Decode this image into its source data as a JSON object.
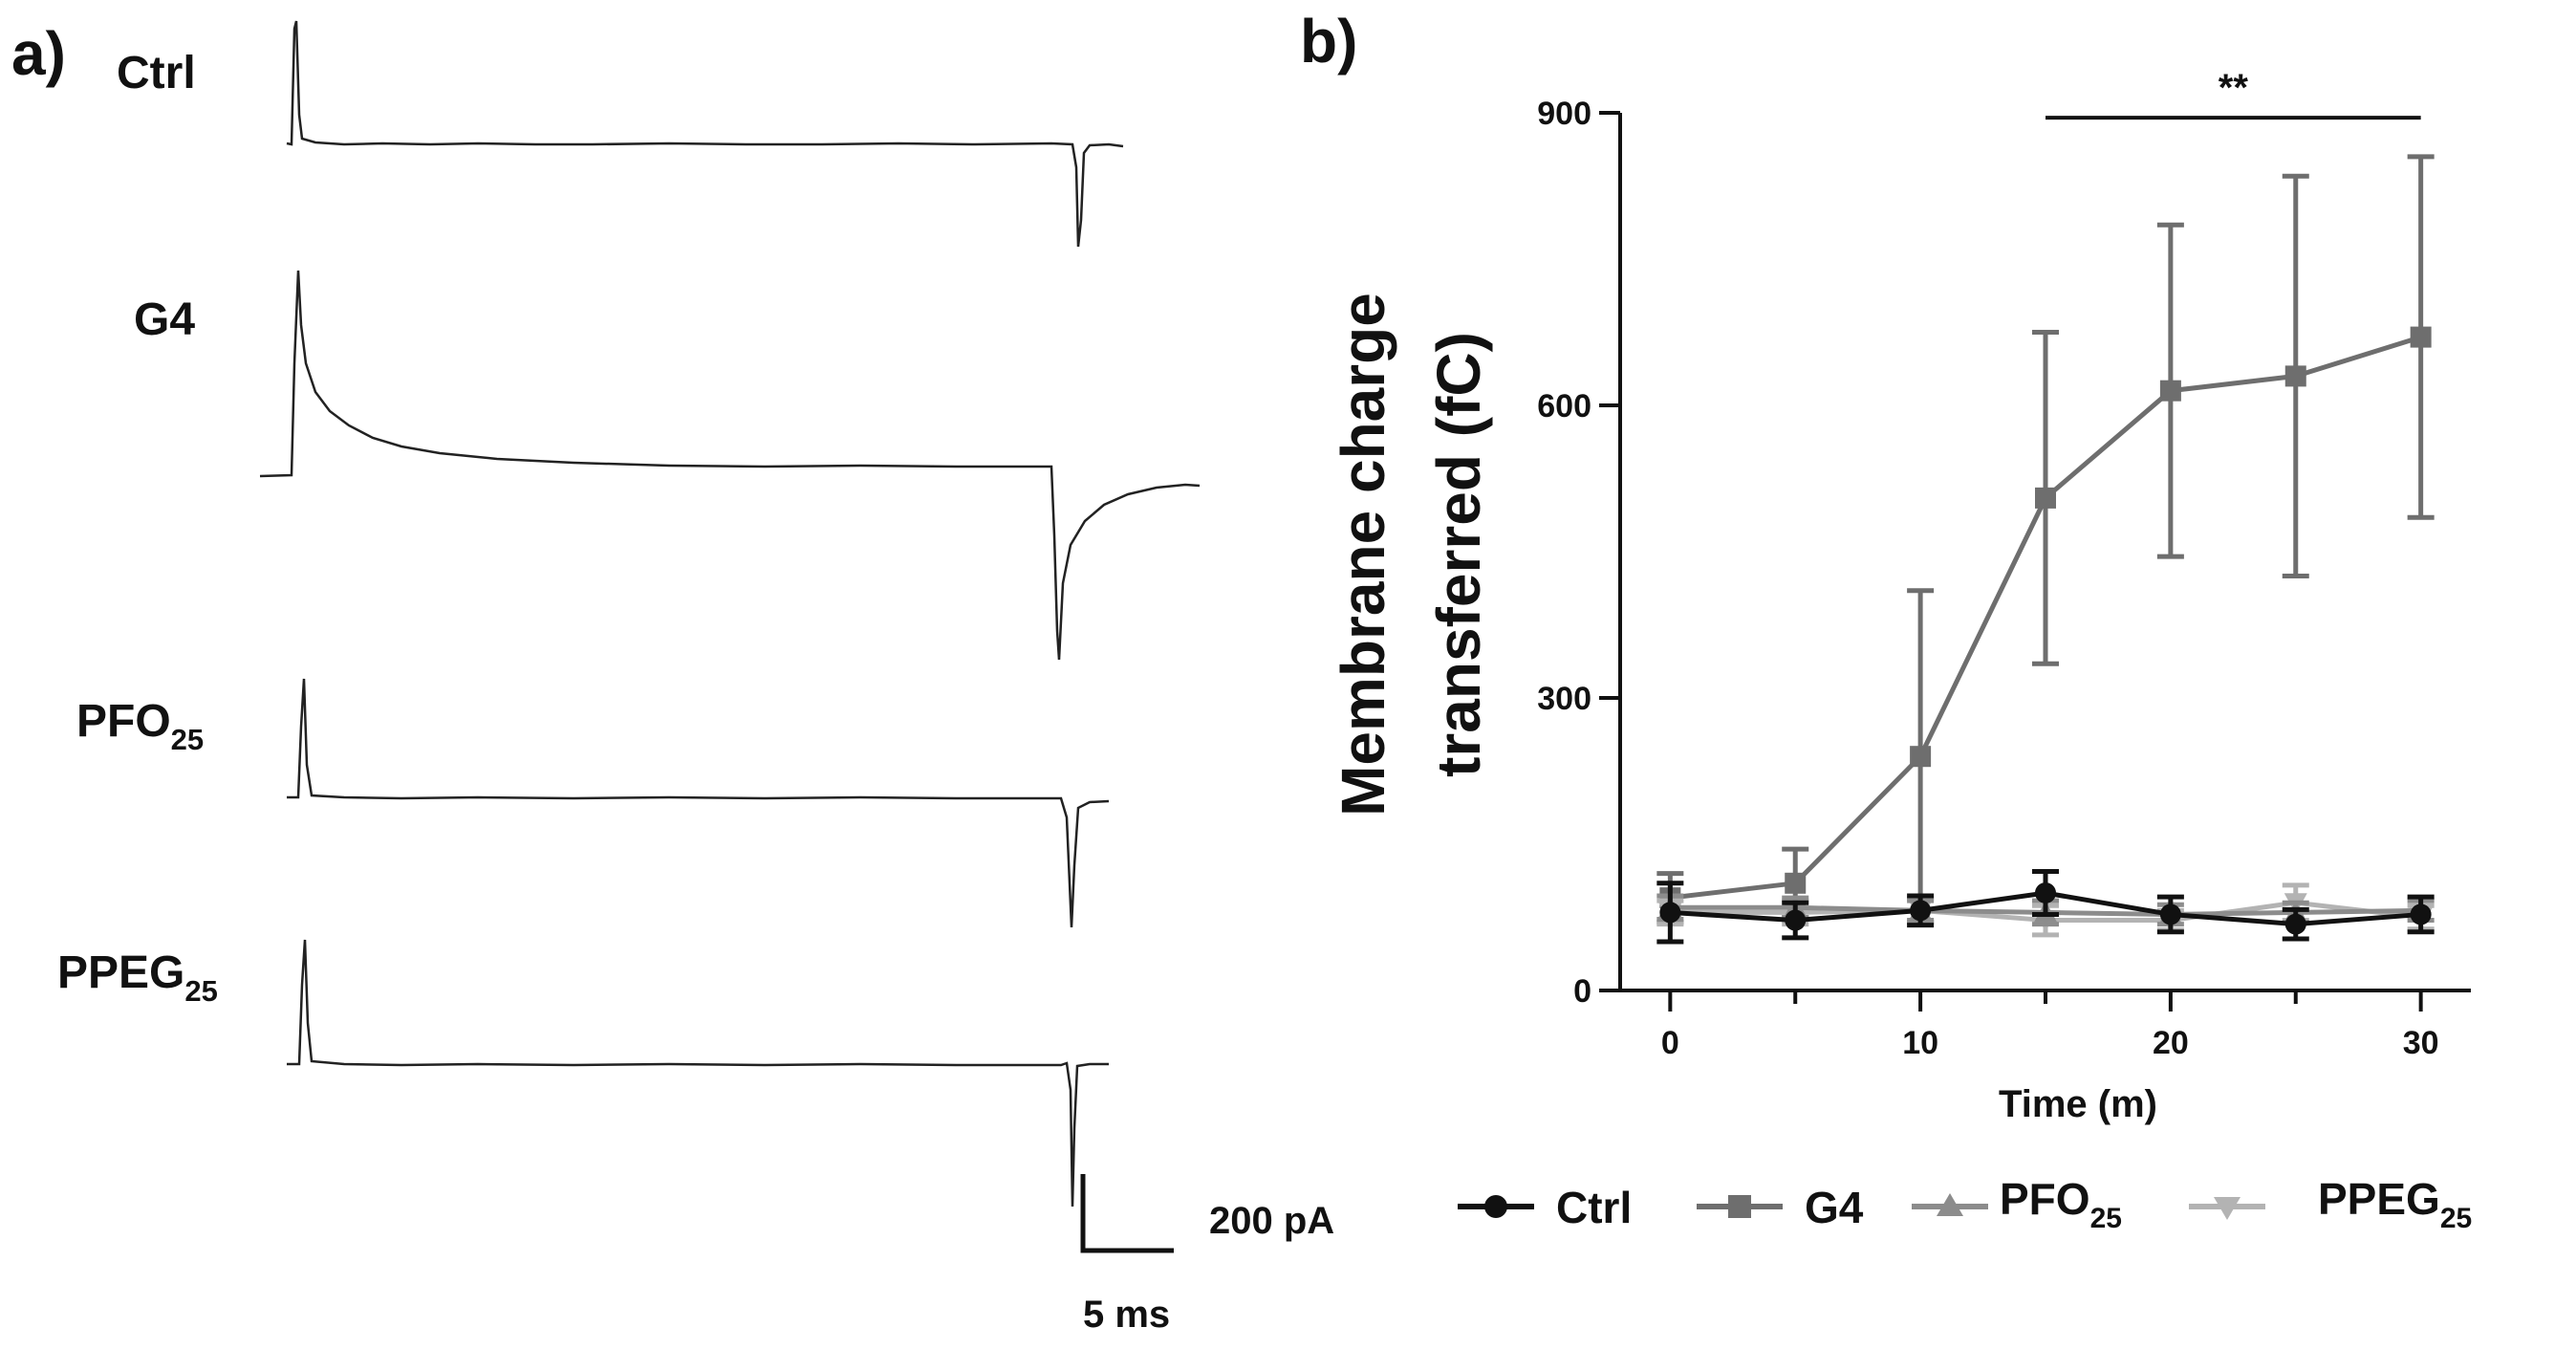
{
  "panel_a": {
    "label": "a)",
    "traces": [
      {
        "name": "Ctrl",
        "sub": ""
      },
      {
        "name": "G4",
        "sub": ""
      },
      {
        "name": "PFO",
        "sub": "25"
      },
      {
        "name": "PPEG",
        "sub": "25"
      }
    ],
    "scale_bar": {
      "y_label": "200 pA",
      "x_label": "5 ms"
    }
  },
  "panel_b": {
    "label": "b)"
  },
  "colors": {
    "Ctrl": "#111111",
    "G4": "#6e6e6e",
    "PFO25": "#8c8c8c",
    "PPEG25": "#b3b3b3"
  },
  "chart_data": {
    "type": "line",
    "ylabel_line1": "Membrane charge",
    "ylabel_line2": "transferred (fC)",
    "xlabel": "Time (m)",
    "x": [
      0,
      5,
      10,
      15,
      20,
      25,
      30
    ],
    "xticks": [
      0,
      10,
      20,
      30
    ],
    "yticks": [
      0,
      300,
      600,
      900
    ],
    "xlim": [
      -2,
      32
    ],
    "ylim": [
      0,
      900
    ],
    "significance": {
      "label": "**",
      "from_x": 15,
      "to_x": 30,
      "y": 895
    },
    "series": [
      {
        "key": "G4",
        "name": "G4",
        "sub": "",
        "marker": "square",
        "values": [
          95,
          110,
          240,
          505,
          615,
          630,
          670
        ],
        "errors": [
          25,
          35,
          170,
          170,
          170,
          205,
          185
        ]
      },
      {
        "key": "PPEG25",
        "name": "PPEG",
        "sub": "25",
        "marker": "triangle-down",
        "values": [
          80,
          80,
          82,
          72,
          72,
          90,
          75
        ],
        "errors": [
          12,
          12,
          12,
          15,
          10,
          18,
          12
        ]
      },
      {
        "key": "PFO25",
        "name": "PFO",
        "sub": "25",
        "marker": "triangle-up",
        "values": [
          85,
          85,
          82,
          80,
          78,
          80,
          82
        ],
        "errors": [
          12,
          10,
          10,
          12,
          10,
          10,
          10
        ]
      },
      {
        "key": "Ctrl",
        "name": "Ctrl",
        "sub": "",
        "marker": "circle",
        "values": [
          80,
          72,
          82,
          100,
          78,
          68,
          78
        ],
        "errors": [
          30,
          18,
          15,
          22,
          18,
          15,
          18
        ]
      }
    ],
    "legend": {
      "placement": "bottom",
      "order": [
        "Ctrl",
        "G4",
        "PFO25",
        "PPEG25"
      ]
    }
  }
}
